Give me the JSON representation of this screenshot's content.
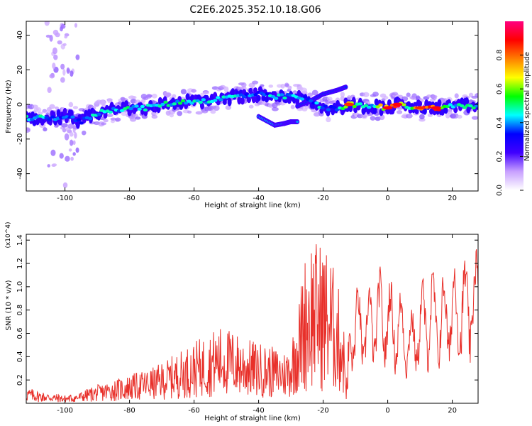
{
  "title": "C2E6.2025.352.10.18.G06",
  "chart_data": [
    {
      "type": "heatmap",
      "title": "C2E6.2025.352.10.18.G06",
      "xlabel": "Height of straight line (km)",
      "ylabel": "Frequency (Hz)",
      "xlim": [
        -112,
        28
      ],
      "ylim": [
        -50,
        48
      ],
      "xticks": [
        -100,
        -80,
        -60,
        -40,
        -20,
        0,
        20
      ],
      "yticks": [
        -40,
        -20,
        0,
        20,
        40
      ],
      "colorbar": {
        "label": "Normalized spectral amplitude",
        "range": [
          0.0,
          1.0
        ],
        "ticks": [
          0.0,
          0.2,
          0.4,
          0.6,
          0.8
        ],
        "tick_labels": [
          "0.0",
          "0.2",
          "0.4",
          "0.6",
          "0.8"
        ],
        "colors": [
          "#ffffff",
          "#c8a0ff",
          "#4000ff",
          "#0000ff",
          "#00ffff",
          "#00ff00",
          "#ffff00",
          "#ff7f00",
          "#ff0000",
          "#ff0080"
        ]
      },
      "ridge": [
        {
          "x": -112,
          "freq": -8,
          "amp": 0.5
        },
        {
          "x": -105,
          "freq": -8,
          "amp": 0.45
        },
        {
          "x": -100,
          "freq": -7,
          "amp": 0.35
        },
        {
          "x": -95,
          "freq": -10,
          "amp": 0.4
        },
        {
          "x": -90,
          "freq": -5,
          "amp": 0.45
        },
        {
          "x": -85,
          "freq": -3,
          "amp": 0.45
        },
        {
          "x": -80,
          "freq": -2,
          "amp": 0.5
        },
        {
          "x": -75,
          "freq": -2,
          "amp": 0.45
        },
        {
          "x": -70,
          "freq": 0,
          "amp": 0.5
        },
        {
          "x": -65,
          "freq": 1,
          "amp": 0.5
        },
        {
          "x": -60,
          "freq": 2,
          "amp": 0.45
        },
        {
          "x": -55,
          "freq": 2,
          "amp": 0.45
        },
        {
          "x": -50,
          "freq": 4,
          "amp": 0.45
        },
        {
          "x": -45,
          "freq": 5,
          "amp": 0.45
        },
        {
          "x": -40,
          "freq": 6,
          "amp": 0.4
        },
        {
          "x": -35,
          "freq": 4,
          "amp": 0.45
        },
        {
          "x": -30,
          "freq": 5,
          "amp": 0.45
        },
        {
          "x": -25,
          "freq": 3,
          "amp": 0.4
        },
        {
          "x": -20,
          "freq": -2,
          "amp": 0.45
        },
        {
          "x": -15,
          "freq": -2,
          "amp": 0.4
        },
        {
          "x": -12,
          "freq": 0,
          "amp": 0.85
        },
        {
          "x": -8,
          "freq": -1,
          "amp": 0.5
        },
        {
          "x": -4,
          "freq": -1,
          "amp": 0.5
        },
        {
          "x": 0,
          "freq": -2,
          "amp": 0.9
        },
        {
          "x": 3,
          "freq": 0,
          "amp": 0.9
        },
        {
          "x": 6,
          "freq": -1,
          "amp": 0.5
        },
        {
          "x": 10,
          "freq": -2,
          "amp": 0.85
        },
        {
          "x": 15,
          "freq": -2,
          "amp": 0.9
        },
        {
          "x": 20,
          "freq": -1,
          "amp": 0.5
        },
        {
          "x": 25,
          "freq": -1,
          "amp": 0.5
        },
        {
          "x": 28,
          "freq": -1,
          "amp": 0.5
        }
      ],
      "branches": [
        {
          "x": [
            -40,
            -35,
            -32,
            -30,
            -28
          ],
          "freq": [
            -7,
            -12,
            -11,
            -10,
            -10
          ],
          "amp": 0.4
        },
        {
          "x": [
            -28,
            -24,
            -20,
            -16,
            -13
          ],
          "freq": [
            -1,
            2,
            6,
            8,
            10
          ],
          "amp": 0.35
        }
      ],
      "noise_column": {
        "x": -101,
        "freq_range": [
          -48,
          48
        ]
      }
    },
    {
      "type": "line",
      "xlabel": "Height of straight line (km)",
      "ylabel": "SNR (10 * v/v)",
      "yscale_label": "(x10^4)",
      "xlim": [
        -112,
        28
      ],
      "ylim": [
        0,
        1.45
      ],
      "xticks": [
        -100,
        -80,
        -60,
        -40,
        -20,
        0,
        20
      ],
      "yticks": [
        0.2,
        0.4,
        0.6,
        0.8,
        1.0,
        1.2,
        1.4
      ],
      "color": "#e8302a",
      "series": [
        {
          "name": "SNR",
          "x": [
            -112,
            -108,
            -104,
            -100,
            -96,
            -92,
            -88,
            -84,
            -80,
            -76,
            -72,
            -68,
            -64,
            -60,
            -56,
            -52,
            -48,
            -44,
            -40,
            -36,
            -32,
            -30,
            -28,
            -26,
            -24,
            -22,
            -20,
            -18,
            -16,
            -14,
            -12.5,
            -12,
            -10,
            -8,
            -6,
            -4,
            -2,
            0,
            2,
            4,
            6,
            8,
            10,
            12,
            14,
            16,
            18,
            20,
            22,
            24,
            26,
            28
          ],
          "values": [
            0.08,
            0.06,
            0.05,
            0.04,
            0.05,
            0.08,
            0.1,
            0.12,
            0.14,
            0.16,
            0.18,
            0.22,
            0.26,
            0.3,
            0.34,
            0.38,
            0.36,
            0.32,
            0.3,
            0.28,
            0.26,
            0.3,
            0.5,
            0.8,
            0.95,
            0.9,
            0.9,
            0.85,
            0.7,
            0.55,
            0.1,
            0.65,
            0.95,
            0.8,
            0.9,
            0.95,
            1.0,
            0.95,
            0.9,
            0.85,
            0.75,
            0.7,
            0.9,
            1.0,
            1.0,
            0.95,
            1.0,
            1.05,
            1.1,
            1.1,
            1.15,
            1.2
          ]
        }
      ]
    }
  ]
}
